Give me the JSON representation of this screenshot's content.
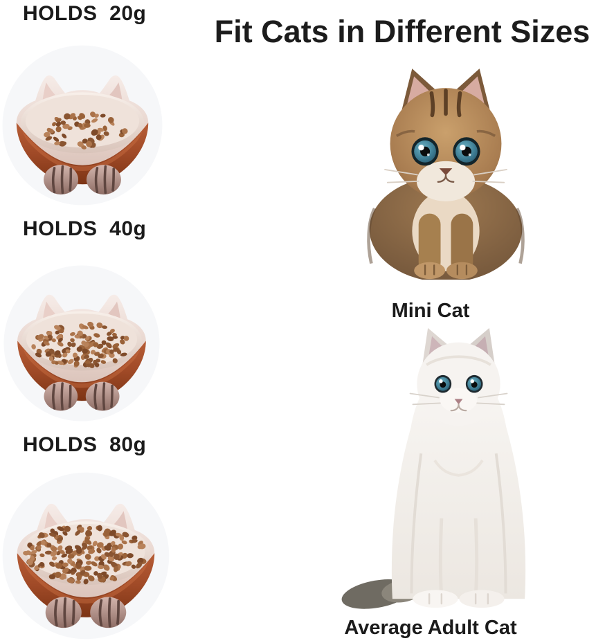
{
  "title": "Fit Cats in Different Sizes",
  "bowls": [
    {
      "label": "HOLDS  20g",
      "capacity": "20g",
      "kibble_count": 55
    },
    {
      "label": "HOLDS  40g",
      "capacity": "40g",
      "kibble_count": 115
    },
    {
      "label": "HOLDS  80g",
      "capacity": "80g",
      "kibble_count": 185
    }
  ],
  "cats": [
    {
      "label": "Mini Cat",
      "description": "fluffy brown tabby kitten with blue eyes"
    },
    {
      "label": "Average Adult Cat",
      "description": "white longhair adult cat with blue eyes"
    }
  ],
  "colors": {
    "text": "#1b1b1b",
    "background": "#ffffff",
    "bowl_exterior": "#a8512e",
    "bowl_rim_pearl": "#e9d7d0",
    "bowl_interior": "#f2e7e0",
    "kibble_brown": "#96603c",
    "paw_feet": "#b3928a",
    "kitten_fur": "#a87c50",
    "adult_cat_fur": "#f5f2ef",
    "cat_eye_blue": "#3e7d94",
    "backdrop_circle": "#f6f7f9"
  }
}
